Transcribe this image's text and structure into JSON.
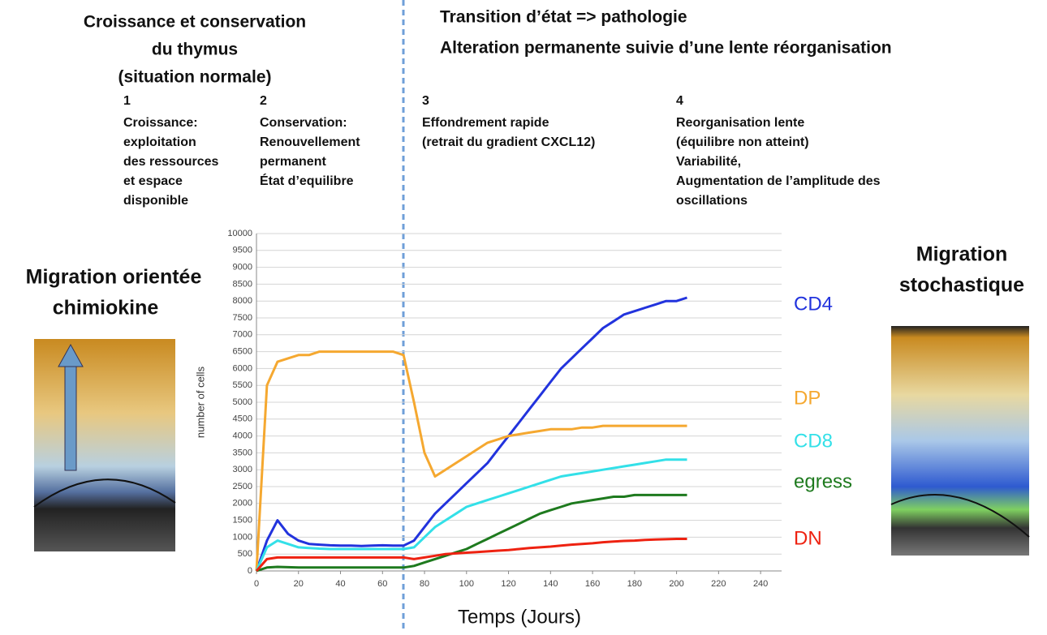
{
  "chart_data": {
    "type": "line",
    "left_heading": [
      "Croissance et conservation",
      "du thymus",
      "(situation normale)"
    ],
    "right_heading": [
      "Transition d’état => pathologie",
      "Alteration permanente suivie d’une lente réorganisation"
    ],
    "phases": [
      {
        "number": "1",
        "text": [
          "Croissance:",
          "exploitation",
          "des ressources",
          "et espace",
          "disponible"
        ]
      },
      {
        "number": "2",
        "text": [
          "Conservation:",
          "Renouvellement",
          "permanent",
          "État d’equilibre"
        ]
      },
      {
        "number": "3",
        "text": [
          "Effondrement rapide",
          "(retrait du gradient CXCL12)"
        ]
      },
      {
        "number": "4",
        "text": [
          "Reorganisation lente",
          "(équilibre non atteint)",
          "Variabilité,",
          "Augmentation de l’amplitude des",
          "oscillations"
        ]
      }
    ],
    "left_label": [
      "Migration orientée",
      "chimiokine"
    ],
    "right_label": [
      "Migration",
      "stochastique"
    ],
    "ylabel": "number of cells",
    "xlabel": "Temps (Jours)",
    "x": [
      0,
      5,
      10,
      15,
      20,
      25,
      30,
      35,
      40,
      45,
      50,
      55,
      60,
      65,
      70,
      75,
      80,
      85,
      90,
      95,
      100,
      105,
      110,
      115,
      120,
      125,
      130,
      135,
      140,
      145,
      150,
      155,
      160,
      165,
      170,
      175,
      180,
      185,
      190,
      195,
      200,
      205
    ],
    "series": [
      {
        "name": "CD4",
        "color": "#2233dd",
        "values": [
          0,
          900,
          1500,
          1100,
          900,
          800,
          780,
          760,
          750,
          750,
          740,
          750,
          760,
          750,
          750,
          900,
          1300,
          1700,
          2000,
          2300,
          2600,
          2900,
          3200,
          3600,
          4000,
          4400,
          4800,
          5200,
          5600,
          6000,
          6300,
          6600,
          6900,
          7200,
          7400,
          7600,
          7700,
          7800,
          7900,
          8000,
          8000,
          8100
        ]
      },
      {
        "name": "DP",
        "color": "#f5a830",
        "values": [
          0,
          5500,
          6200,
          6300,
          6400,
          6400,
          6500,
          6500,
          6500,
          6500,
          6500,
          6500,
          6500,
          6500,
          6400,
          5000,
          3500,
          2800,
          3000,
          3200,
          3400,
          3600,
          3800,
          3900,
          4000,
          4050,
          4100,
          4150,
          4200,
          4200,
          4200,
          4250,
          4250,
          4300,
          4300,
          4300,
          4300,
          4300,
          4300,
          4300,
          4300,
          4300
        ]
      },
      {
        "name": "CD8",
        "color": "#33e0e8",
        "values": [
          0,
          700,
          900,
          800,
          700,
          680,
          660,
          650,
          650,
          650,
          650,
          650,
          650,
          650,
          650,
          700,
          1000,
          1300,
          1500,
          1700,
          1900,
          2000,
          2100,
          2200,
          2300,
          2400,
          2500,
          2600,
          2700,
          2800,
          2850,
          2900,
          2950,
          3000,
          3050,
          3100,
          3150,
          3200,
          3250,
          3300,
          3300,
          3300
        ]
      },
      {
        "name": "egress",
        "color": "#1e7a1e",
        "values": [
          0,
          100,
          120,
          110,
          100,
          100,
          100,
          100,
          100,
          100,
          100,
          100,
          100,
          100,
          100,
          150,
          250,
          350,
          450,
          550,
          650,
          800,
          950,
          1100,
          1250,
          1400,
          1550,
          1700,
          1800,
          1900,
          2000,
          2050,
          2100,
          2150,
          2200,
          2200,
          2250,
          2250,
          2250,
          2250,
          2250,
          2250
        ]
      },
      {
        "name": "DN",
        "color": "#ee2211",
        "values": [
          0,
          350,
          400,
          400,
          400,
          400,
          400,
          400,
          400,
          400,
          400,
          400,
          400,
          400,
          400,
          350,
          400,
          450,
          500,
          520,
          540,
          560,
          580,
          600,
          620,
          650,
          680,
          700,
          720,
          750,
          780,
          800,
          820,
          850,
          870,
          890,
          900,
          920,
          930,
          940,
          950,
          950
        ]
      }
    ],
    "xlim": [
      0,
      250
    ],
    "ylim": [
      0,
      10000
    ],
    "xticks": [
      0,
      20,
      40,
      60,
      80,
      100,
      120,
      140,
      160,
      180,
      200,
      220,
      240
    ],
    "yticks": [
      0,
      500,
      1000,
      1500,
      2000,
      2500,
      3000,
      3500,
      4000,
      4500,
      5000,
      5500,
      6000,
      6500,
      7000,
      7500,
      8000,
      8500,
      9000,
      9500,
      10000
    ],
    "grid": true
  }
}
